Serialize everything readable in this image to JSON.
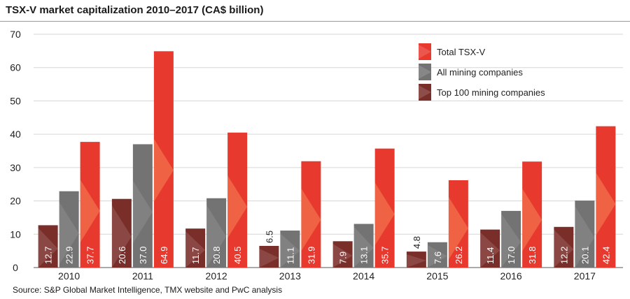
{
  "chart_data": {
    "type": "bar",
    "title": "TSX-V market capitalization 2010–2017 (CA$ billion)",
    "source": "Source: S&P Global Market Intelligence, TMX website and PwC analysis",
    "xlabel": "",
    "ylabel": "",
    "ylim": [
      0,
      70
    ],
    "yticks": [
      0,
      10,
      20,
      30,
      40,
      50,
      60,
      70
    ],
    "grid": true,
    "legend_position": "top-right",
    "categories": [
      "2010",
      "2011",
      "2012",
      "2013",
      "2014",
      "2015",
      "2016",
      "2017"
    ],
    "series": [
      {
        "name": "Top 100 mining companies",
        "color": "#7a2e2a",
        "values": [
          12.7,
          20.6,
          11.7,
          6.5,
          7.9,
          4.8,
          11.4,
          12.2
        ],
        "labels": [
          "12.7",
          "20.6",
          "11.7",
          "6.5",
          "7.9",
          "4.8",
          "11.4",
          "12.2"
        ]
      },
      {
        "name": "All mining companies",
        "color": "#737373",
        "values": [
          22.9,
          37.0,
          20.8,
          11.1,
          13.1,
          7.6,
          17.0,
          20.1
        ],
        "labels": [
          "22.9",
          "37.0",
          "20.8",
          "11.1",
          "13.1",
          "7.6",
          "17.0",
          "20.1"
        ]
      },
      {
        "name": "Total TSX-V",
        "color": "#e8392f",
        "values": [
          37.7,
          64.9,
          40.5,
          31.9,
          35.7,
          26.2,
          31.8,
          42.4
        ],
        "labels": [
          "37.7",
          "64.9",
          "40.5",
          "31.9",
          "35.7",
          "26.2",
          "31.8",
          "42.4"
        ]
      }
    ]
  }
}
